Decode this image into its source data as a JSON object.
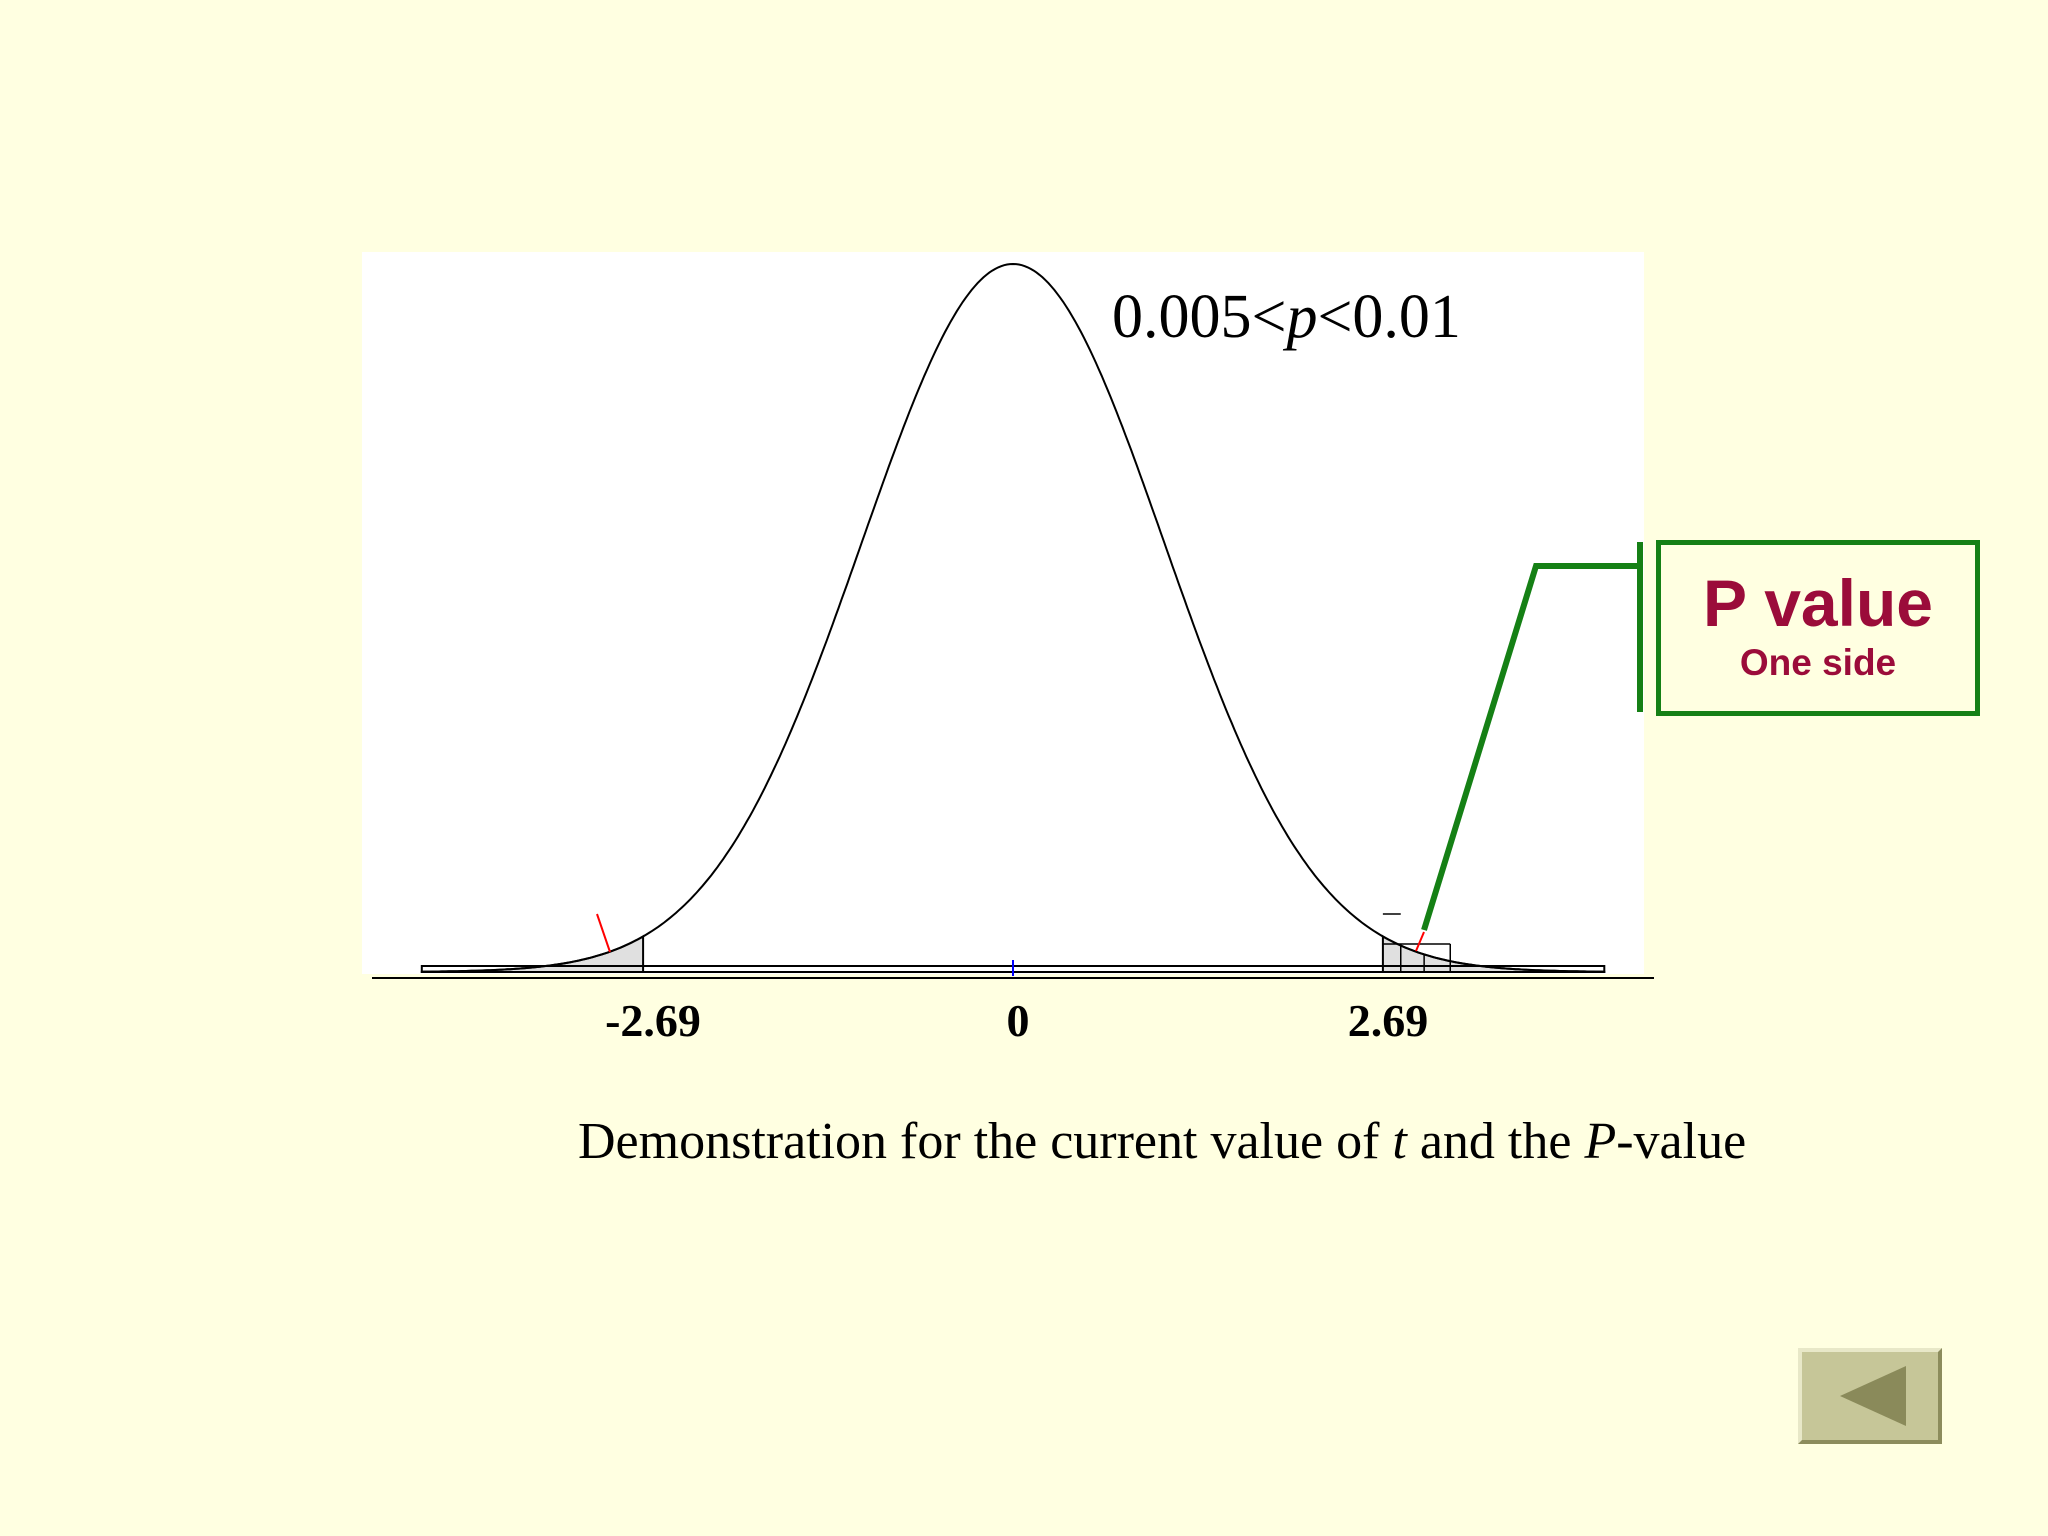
{
  "chart_data": {
    "type": "area",
    "distribution": "t",
    "x_ticks": [
      {
        "value": -2.69,
        "label": "-2.69"
      },
      {
        "value": 0,
        "label": "0"
      },
      {
        "value": 2.69,
        "label": "2.69"
      }
    ],
    "shaded_tails": [
      {
        "from": -4.3,
        "to": -2.69
      },
      {
        "from": 2.69,
        "to": 4.3
      }
    ],
    "critical_value": 2.69,
    "annotation": {
      "prefix": "0.005<",
      "italic": "p",
      "suffix": "<0.01"
    },
    "colors": {
      "fill": "#E0E0E0",
      "center_tick": "#0000FF",
      "tail_marker": "#FF0000"
    }
  },
  "callout": {
    "title": "P value",
    "subtitle": "One side",
    "border_color": "#158015",
    "text_color": "#9B0C3A"
  },
  "caption": {
    "part1": "Demonstration for the current value of ",
    "italic1": "t",
    "part2": " and the ",
    "italic2": "P",
    "part3": "-value"
  },
  "nav": {
    "back_icon": "triangle-left-icon"
  },
  "colors": {
    "background": "#FFFFE1",
    "plot_background": "#FFFFFF"
  }
}
